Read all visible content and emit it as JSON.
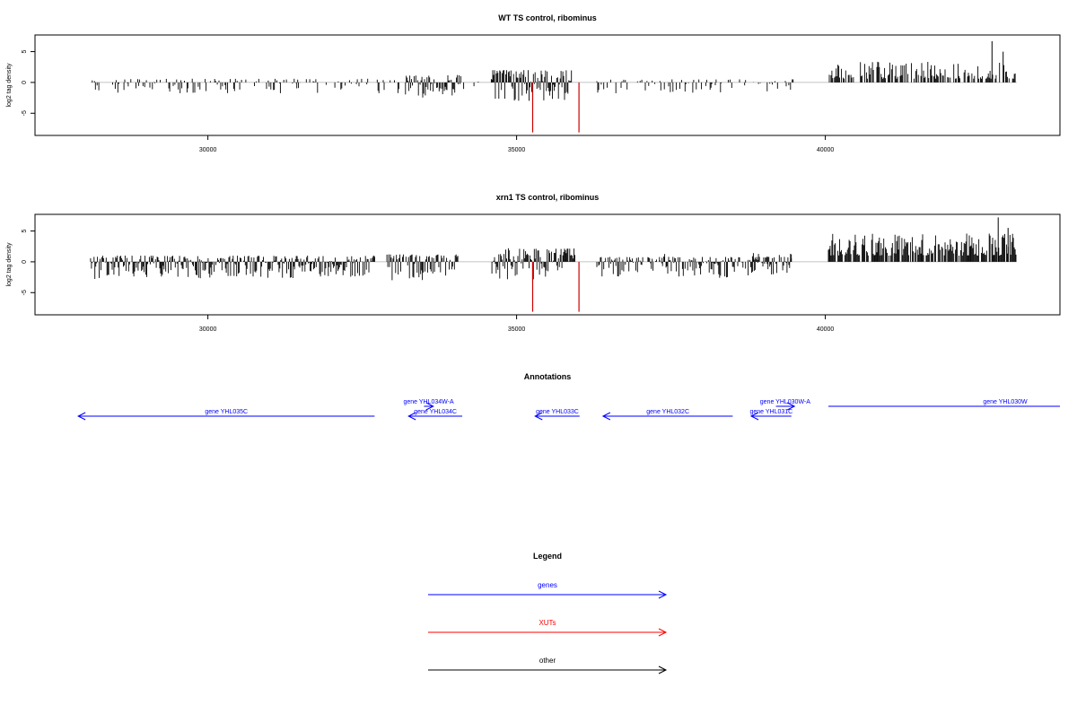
{
  "chart_data": [
    {
      "type": "bar",
      "title": "WT TS control, ribominus",
      "xlabel": "",
      "ylabel": "log2 tag density",
      "xlim": [
        27200,
        43800
      ],
      "ylim": [
        -8.6,
        7.7
      ],
      "x_ticks": [
        30000,
        35000,
        40000
      ],
      "y_ticks": [
        -5,
        0,
        5
      ],
      "tick_labels": {
        "x": [
          "30000",
          "35000",
          "40000"
        ],
        "y": [
          "-5",
          "0",
          "5"
        ]
      },
      "negative_segments": [
        {
          "x0": 28100,
          "x1": 28150,
          "base": -0.6,
          "amp": 2.8,
          "density": 0.25,
          "seed": 11
        },
        {
          "x0": 28150,
          "x1": 33200,
          "base": -0.6,
          "amp": 2.4,
          "density": 0.32,
          "seed": 12
        },
        {
          "x0": 33200,
          "x1": 34100,
          "base": -1.2,
          "amp": 3.8,
          "density": 0.9,
          "seed": 13
        },
        {
          "x0": 34100,
          "x1": 34600,
          "base": -0.6,
          "amp": 1.8,
          "density": 0.2,
          "seed": 14
        },
        {
          "x0": 34600,
          "x1": 35900,
          "base": -2.0,
          "amp": 5.0,
          "density": 1.0,
          "seed": 15
        },
        {
          "x0": 36300,
          "x1": 39500,
          "base": -0.5,
          "amp": 2.3,
          "density": 0.3,
          "seed": 16
        }
      ],
      "positive_segments": [
        {
          "x0": 40050,
          "x1": 43100,
          "base": 0.6,
          "amp": 2.8,
          "density": 0.55,
          "seed": 17
        }
      ],
      "extra_bars": [
        {
          "x": 42700,
          "y": 6.7
        },
        {
          "x": 42880,
          "y": 5.0
        }
      ],
      "highlight_bars": [
        {
          "x": 35260,
          "y": -8.1
        },
        {
          "x": 36010,
          "y": -8.1
        }
      ],
      "colors": {
        "bars": "#000000",
        "highlight": "#cc0000",
        "baseline": "#b0b0b0"
      }
    },
    {
      "type": "bar",
      "title": "xrn1 TS control, ribominus",
      "xlabel": "",
      "ylabel": "log2 tag density",
      "xlim": [
        27200,
        43800
      ],
      "ylim": [
        -8.6,
        7.7
      ],
      "x_ticks": [
        30000,
        35000,
        40000
      ],
      "y_ticks": [
        -5,
        0,
        5
      ],
      "tick_labels": {
        "x": [
          "30000",
          "35000",
          "40000"
        ],
        "y": [
          "-5",
          "0",
          "5"
        ]
      },
      "negative_segments": [
        {
          "x0": 28100,
          "x1": 32700,
          "base": -1.0,
          "amp": 3.8,
          "density": 0.9,
          "seed": 21
        },
        {
          "x0": 32900,
          "x1": 34050,
          "base": -1.2,
          "amp": 4.2,
          "density": 0.9,
          "seed": 22
        },
        {
          "x0": 34600,
          "x1": 35950,
          "base": -2.2,
          "amp": 5.4,
          "density": 1.0,
          "seed": 23
        },
        {
          "x0": 36300,
          "x1": 39450,
          "base": -0.8,
          "amp": 3.4,
          "density": 0.8,
          "seed": 24
        }
      ],
      "positive_segments": [
        {
          "x0": 40050,
          "x1": 43100,
          "base": 1.0,
          "amp": 3.6,
          "density": 0.8,
          "seed": 25
        },
        {
          "x0": 37300,
          "x1": 37400,
          "base": 0.4,
          "amp": 2.2,
          "density": 0.4,
          "seed": 26
        },
        {
          "x0": 38750,
          "x1": 39450,
          "base": 0.3,
          "amp": 1.2,
          "density": 0.3,
          "seed": 27
        }
      ],
      "extra_bars": [
        {
          "x": 42800,
          "y": 7.2
        },
        {
          "x": 42960,
          "y": 5.5
        },
        {
          "x": 32700,
          "y": 0.8
        }
      ],
      "highlight_bars": [
        {
          "x": 35260,
          "y": -8.1
        },
        {
          "x": 36010,
          "y": -8.1
        }
      ],
      "colors": {
        "bars": "#000000",
        "highlight": "#cc0000",
        "baseline": "#b0b0b0"
      }
    }
  ],
  "annotations": {
    "title": "Annotations",
    "genes": [
      {
        "label": "gene YHL035C",
        "x0": 32700,
        "x1": 27900,
        "row": 2
      },
      {
        "label": "gene YHL034W-A",
        "x0": 33500,
        "x1": 33650,
        "row": 1
      },
      {
        "label": "gene YHL034C",
        "x0": 34120,
        "x1": 33250,
        "row": 2
      },
      {
        "label": "gene YHL033C",
        "x0": 36020,
        "x1": 35300,
        "row": 2
      },
      {
        "label": "gene YHL032C",
        "x0": 38500,
        "x1": 36400,
        "row": 2
      },
      {
        "label": "gene YHL031C",
        "x0": 39450,
        "x1": 38800,
        "row": 2
      },
      {
        "label": "gene YHL030W-A",
        "x0": 39200,
        "x1": 39500,
        "row": 1
      },
      {
        "label": "gene YHL030W",
        "x0": 40050,
        "x1": 43800,
        "row": 0
      }
    ]
  },
  "legend": {
    "title": "Legend",
    "items": [
      {
        "label": "genes",
        "color": "#0000ff"
      },
      {
        "label": "XUTs",
        "color": "#ff0000"
      },
      {
        "label": "other",
        "color": "#000000"
      }
    ]
  }
}
